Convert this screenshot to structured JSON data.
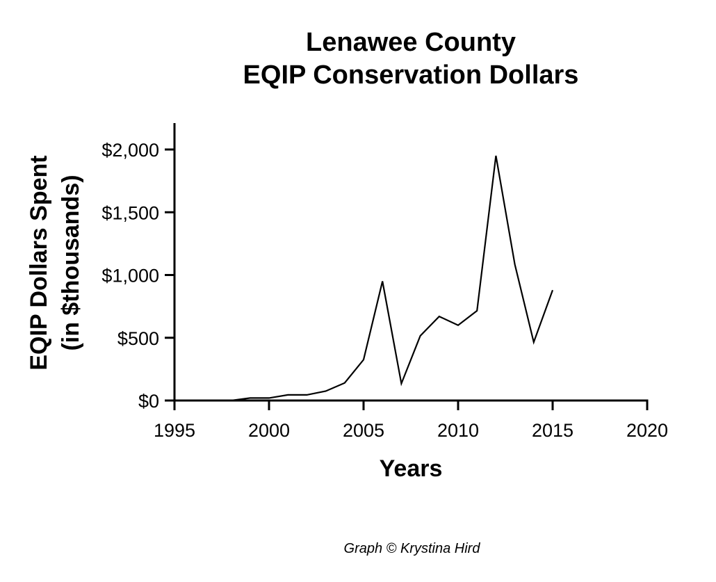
{
  "chart_data": {
    "type": "line",
    "title": [
      "Lenawee County",
      "EQIP Conservation Dollars"
    ],
    "xlabel": "Years",
    "ylabel": [
      "EQIP Dollars Spent",
      "(in $thousands)"
    ],
    "xlim": [
      1995,
      2020
    ],
    "ylim": [
      0,
      2200
    ],
    "xticks": [
      1995,
      2000,
      2005,
      2010,
      2015,
      2020
    ],
    "xtick_labels": [
      "1995",
      "2000",
      "2005",
      "2010",
      "2015",
      "2020"
    ],
    "yticks": [
      0,
      500,
      1000,
      1500,
      2000
    ],
    "ytick_labels": [
      "$0",
      "$500",
      "$1,000",
      "$1,500",
      "$2,000"
    ],
    "grid": false,
    "series": [
      {
        "name": "EQIP Dollars",
        "color": "#000000",
        "x": [
          1998,
          1999,
          2000,
          2001,
          2002,
          2003,
          2004,
          2005,
          2006,
          2007,
          2008,
          2009,
          2010,
          2011,
          2012,
          2013,
          2014,
          2015
        ],
        "values": [
          0,
          20,
          20,
          45,
          45,
          75,
          140,
          325,
          950,
          135,
          515,
          670,
          600,
          715,
          1950,
          1085,
          465,
          880
        ]
      }
    ]
  },
  "credit": "Graph © Krystina Hird"
}
